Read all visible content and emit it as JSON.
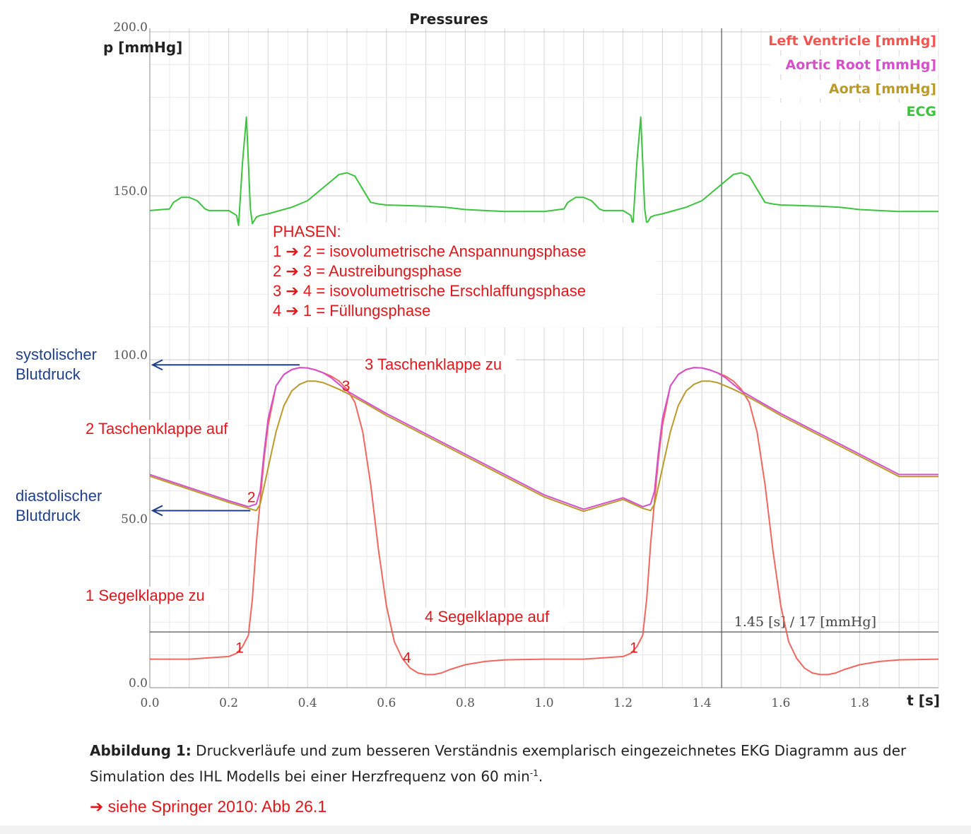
{
  "chart_data": {
    "type": "line",
    "title": "Pressures",
    "ylabel": "p [mmHg]",
    "xlabel": "t [s]",
    "xlim": [
      0,
      2.0
    ],
    "ylim": [
      0,
      200
    ],
    "x_ticks": [
      {
        "value": 0.0,
        "label": "0.0"
      },
      {
        "value": 0.2,
        "label": "0.2"
      },
      {
        "value": 0.4,
        "label": "0.4"
      },
      {
        "value": 0.6,
        "label": "0.6"
      },
      {
        "value": 0.8,
        "label": "0.8"
      },
      {
        "value": 1.0,
        "label": "1.0"
      },
      {
        "value": 1.2,
        "label": "1.2"
      },
      {
        "value": 1.4,
        "label": "1.4"
      },
      {
        "value": 1.6,
        "label": "1.6"
      },
      {
        "value": 1.8,
        "label": "1.8"
      }
    ],
    "y_ticks": [
      {
        "value": 0,
        "label": "0.0"
      },
      {
        "value": 50,
        "label": "50.0"
      },
      {
        "value": 100,
        "label": "100.0"
      },
      {
        "value": 150,
        "label": "150.0"
      },
      {
        "value": 200,
        "label": "200.0"
      }
    ],
    "grid": true,
    "legend_position": "top-right",
    "series": [
      {
        "name": "Left Ventricle [mmHg]",
        "color": "#f0564f",
        "x": [
          0,
          0.1,
          0.2,
          0.22,
          0.235,
          0.25,
          0.26,
          0.27,
          0.28,
          0.29,
          0.3,
          0.32,
          0.34,
          0.36,
          0.38,
          0.4,
          0.42,
          0.44,
          0.46,
          0.48,
          0.5,
          0.52,
          0.54,
          0.56,
          0.58,
          0.6,
          0.62,
          0.64,
          0.66,
          0.68,
          0.7,
          0.72,
          0.74,
          0.76,
          0.8,
          0.85,
          0.9,
          1.0,
          1.1,
          1.2,
          1.22,
          1.235,
          1.25,
          1.26,
          1.27,
          1.28,
          1.29,
          1.3,
          1.32,
          1.34,
          1.36,
          1.38,
          1.4,
          1.42,
          1.44,
          1.46,
          1.48,
          1.5,
          1.52,
          1.54,
          1.56,
          1.58,
          1.6,
          1.62,
          1.64,
          1.66,
          1.68,
          1.7,
          1.72,
          1.74,
          1.76,
          1.8,
          1.85,
          1.9,
          2.0
        ],
        "y": [
          8.7,
          8.7,
          9.5,
          10.5,
          12.5,
          16,
          27,
          44,
          57,
          70,
          80,
          92,
          95.5,
          97,
          97.6,
          97.5,
          96.9,
          96,
          95,
          93.5,
          91,
          87,
          78,
          62,
          42,
          25,
          14,
          9,
          6,
          4.5,
          4,
          4,
          4.5,
          5.5,
          7,
          8,
          8.5,
          8.7,
          8.7,
          9.5,
          10.5,
          12.5,
          16,
          27,
          44,
          57,
          70,
          80,
          92,
          95.5,
          97,
          97.6,
          97.5,
          96.9,
          96,
          95,
          93.5,
          91,
          87,
          78,
          62,
          42,
          25,
          14,
          9,
          6,
          4.5,
          4,
          4,
          4.5,
          5.5,
          7,
          8,
          8.5,
          8.7
        ]
      },
      {
        "name": "Aortic Root [mmHg]",
        "color": "#d64fcb",
        "x": [
          0,
          0.05,
          0.1,
          0.15,
          0.2,
          0.25,
          0.27,
          0.28,
          0.29,
          0.3,
          0.32,
          0.34,
          0.36,
          0.38,
          0.4,
          0.42,
          0.44,
          0.46,
          0.48,
          0.5,
          0.55,
          0.6,
          0.7,
          0.8,
          0.9,
          1.0,
          1.1,
          1.2,
          1.25,
          1.27,
          1.28,
          1.29,
          1.3,
          1.32,
          1.34,
          1.36,
          1.38,
          1.4,
          1.42,
          1.44,
          1.46,
          1.48,
          1.5,
          1.55,
          1.6,
          1.7,
          1.8,
          1.9,
          2.0
        ],
        "y": [
          65,
          63,
          61,
          59,
          57,
          55.2,
          56,
          60,
          72,
          82,
          92,
          95.5,
          97,
          97.6,
          97.5,
          96.9,
          96,
          94.5,
          92.5,
          90.5,
          87,
          83.6,
          77.4,
          71.2,
          65,
          58.8,
          54.4,
          57.9,
          55.2,
          56,
          60,
          72,
          82,
          92,
          95.5,
          97,
          97.6,
          97.5,
          96.9,
          96,
          94.5,
          92.5,
          90.5,
          87,
          83.6,
          77.4,
          71.2,
          65,
          65
        ]
      },
      {
        "name": "Aorta [mmHg]",
        "color": "#b99a2a",
        "x": [
          0,
          0.05,
          0.1,
          0.15,
          0.2,
          0.25,
          0.27,
          0.28,
          0.3,
          0.32,
          0.34,
          0.36,
          0.38,
          0.4,
          0.42,
          0.44,
          0.46,
          0.48,
          0.5,
          0.55,
          0.6,
          0.7,
          0.8,
          0.9,
          1.0,
          1.1,
          1.2,
          1.25,
          1.27,
          1.28,
          1.3,
          1.32,
          1.34,
          1.36,
          1.38,
          1.4,
          1.42,
          1.44,
          1.46,
          1.48,
          1.5,
          1.55,
          1.6,
          1.7,
          1.8,
          1.9,
          2.0
        ],
        "y": [
          64.5,
          62.5,
          60.5,
          58.5,
          56.5,
          54.7,
          54,
          56,
          67,
          78,
          86,
          90.5,
          92.5,
          93.5,
          93.5,
          93,
          92,
          91,
          89.8,
          86.5,
          83,
          76.8,
          70.6,
          64.4,
          58.2,
          53.8,
          57.4,
          54.7,
          54,
          56,
          67,
          78,
          86,
          90.5,
          92.5,
          93.5,
          93.5,
          93,
          92,
          91,
          89.8,
          86.5,
          83,
          76.8,
          70.6,
          64.4,
          64.4
        ]
      },
      {
        "name": "ECG",
        "color": "#3cc43e",
        "x": [
          0,
          0.05,
          0.06,
          0.08,
          0.1,
          0.12,
          0.14,
          0.15,
          0.16,
          0.2,
          0.22,
          0.225,
          0.235,
          0.245,
          0.25,
          0.255,
          0.26,
          0.27,
          0.28,
          0.3,
          0.33,
          0.36,
          0.4,
          0.44,
          0.46,
          0.48,
          0.5,
          0.52,
          0.54,
          0.56,
          0.58,
          0.6,
          0.65,
          0.7,
          0.75,
          0.8,
          0.85,
          0.9,
          0.95,
          1.0,
          1.05,
          1.06,
          1.08,
          1.1,
          1.12,
          1.14,
          1.15,
          1.16,
          1.2,
          1.22,
          1.225,
          1.235,
          1.245,
          1.25,
          1.255,
          1.26,
          1.27,
          1.28,
          1.3,
          1.33,
          1.36,
          1.4,
          1.44,
          1.46,
          1.48,
          1.5,
          1.52,
          1.54,
          1.56,
          1.58,
          1.6,
          1.65,
          1.7,
          1.75,
          1.8,
          1.85,
          1.9,
          1.95,
          2.0
        ],
        "y": [
          145.5,
          146,
          148,
          149.5,
          149.5,
          148.5,
          146,
          145.5,
          145.5,
          145.5,
          144,
          141,
          160,
          174,
          160,
          146,
          141.5,
          143.5,
          144,
          144.5,
          145.5,
          146.5,
          148.5,
          152.5,
          154.5,
          156.5,
          157,
          156,
          152,
          148,
          147.5,
          147.2,
          147,
          146.8,
          146.5,
          145.8,
          145.5,
          145.2,
          145.2,
          145.2,
          146,
          148,
          149.5,
          149.5,
          148.5,
          146,
          145.5,
          145.5,
          145.5,
          144,
          141,
          160,
          174,
          160,
          146,
          141.5,
          143.5,
          144,
          144.5,
          145.5,
          146.5,
          148.5,
          152.5,
          154.5,
          156.5,
          157,
          156,
          152,
          148,
          147.5,
          147.2,
          147,
          146.8,
          146.5,
          145.8,
          145.5,
          145.2,
          145.2,
          145.2
        ]
      }
    ],
    "cursor": {
      "x": 1.45,
      "y": 17,
      "label": "1.45 [s] / 17 [mmHg]"
    },
    "phase_box": {
      "lines": [
        "PHASEN:",
        "1 ➔ 2 = isovolumetrische Anspannungsphase",
        "2 ➔ 3 = Austreibungsphase",
        "3 ➔ 4 = isovolumetrische Erschlaffungsphase",
        "4 ➔ 1 = Füllungsphase"
      ]
    },
    "annotations": [
      {
        "text": "3 Taschenklappe zu",
        "color": "#e4161b"
      },
      {
        "text": "2 Taschenklappe auf",
        "color": "#e4161b"
      },
      {
        "text": "1 Segelklappe zu",
        "color": "#e4161b"
      },
      {
        "text": "4 Segelklappe auf",
        "color": "#e4161b"
      }
    ],
    "point_markers": [
      {
        "text": "1",
        "x": 0.235,
        "y": 11.5
      },
      {
        "text": "2",
        "x": 0.265,
        "y": 57
      },
      {
        "text": "3",
        "x": 0.505,
        "y": 91
      },
      {
        "text": "4",
        "x": 0.645,
        "y": 8.5
      },
      {
        "text": "1",
        "x": 1.235,
        "y": 11.5
      }
    ],
    "pressure_markers": [
      {
        "lines": [
          "systolischer",
          "Blutdruck"
        ],
        "value": 98,
        "arrow_to_x": 0.38,
        "color": "#1f3f8a"
      },
      {
        "lines": [
          "diastolischer",
          "Blutdruck"
        ],
        "value": 54,
        "arrow_to_x": 0.255,
        "color": "#1f3f8a"
      }
    ]
  },
  "caption": {
    "label": "Abbildung 1:",
    "text": " Druckverläufe und zum besseren Verständnis exemplarisch eingezeichnetes EKG Diagramm aus der Simulation des IHL Modells bei einer Herzfrequenz von 60 min",
    "superscript": "-1",
    "end": "."
  },
  "reference": "➔ siehe Springer 2010: Abb 26.1"
}
